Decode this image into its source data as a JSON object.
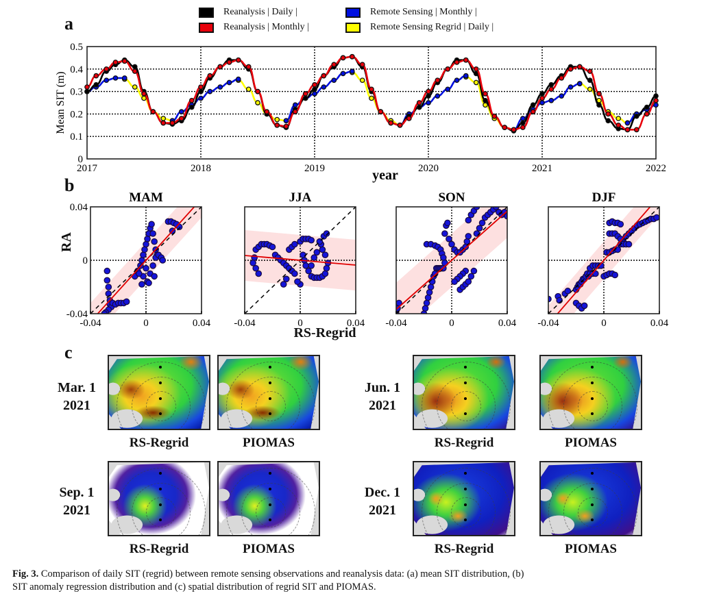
{
  "panels": {
    "a": {
      "letter": "a"
    },
    "b": {
      "letter": "b"
    },
    "c": {
      "letter": "c"
    }
  },
  "legend": [
    {
      "label": "Reanalysis  |  Daily  |",
      "color": "#000000"
    },
    {
      "label": "Reanalysis  |  Monthly  |",
      "color": "#e8000b"
    },
    {
      "label": "Remote Sensing  |  Monthly  |",
      "color": "#0010e0"
    },
    {
      "label": "Remote Sensing Regrid  |  Daily  |",
      "color": "#ffff00"
    }
  ],
  "chart_data": [
    {
      "type": "line",
      "title": "",
      "xlabel": "year",
      "ylabel": "Mean SIT (m)",
      "xlim": [
        2017,
        2022
      ],
      "ylim": [
        0,
        0.5
      ],
      "xticks": [
        "2017",
        "2018",
        "2019",
        "2020",
        "2021",
        "2022"
      ],
      "yticks": [
        "0",
        "0.1",
        "0.2",
        "0.3",
        "0.4",
        "0.5"
      ],
      "grid": true,
      "series": [
        {
          "name": "Reanalysis | Daily",
          "color": "#000000",
          "x": [
            2017.0,
            2017.08,
            2017.17,
            2017.25,
            2017.33,
            2017.42,
            2017.5,
            2017.58,
            2017.67,
            2017.75,
            2017.83,
            2017.92,
            2018.0,
            2018.08,
            2018.17,
            2018.25,
            2018.33,
            2018.42,
            2018.5,
            2018.58,
            2018.67,
            2018.75,
            2018.83,
            2018.92,
            2019.0,
            2019.08,
            2019.17,
            2019.25,
            2019.33,
            2019.42,
            2019.5,
            2019.58,
            2019.67,
            2019.75,
            2019.83,
            2019.92,
            2020.0,
            2020.08,
            2020.17,
            2020.25,
            2020.33,
            2020.42,
            2020.5,
            2020.58,
            2020.67,
            2020.75,
            2020.83,
            2020.92,
            2021.0,
            2021.08,
            2021.17,
            2021.25,
            2021.33,
            2021.42,
            2021.5,
            2021.58,
            2021.67,
            2021.75,
            2021.83,
            2021.92,
            2022.0
          ],
          "y": [
            0.3,
            0.33,
            0.39,
            0.42,
            0.44,
            0.41,
            0.3,
            0.21,
            0.16,
            0.155,
            0.17,
            0.23,
            0.3,
            0.36,
            0.41,
            0.44,
            0.44,
            0.4,
            0.3,
            0.2,
            0.15,
            0.14,
            0.22,
            0.27,
            0.31,
            0.37,
            0.41,
            0.45,
            0.455,
            0.41,
            0.3,
            0.21,
            0.16,
            0.15,
            0.19,
            0.23,
            0.28,
            0.34,
            0.4,
            0.44,
            0.44,
            0.38,
            0.26,
            0.19,
            0.14,
            0.125,
            0.16,
            0.24,
            0.29,
            0.33,
            0.37,
            0.41,
            0.41,
            0.35,
            0.24,
            0.17,
            0.135,
            0.13,
            0.19,
            0.23,
            0.28
          ]
        },
        {
          "name": "Reanalysis | Monthly",
          "color": "#e8000b",
          "x": [
            2017.0,
            2017.08,
            2017.17,
            2017.25,
            2017.33,
            2017.42,
            2017.5,
            2017.58,
            2017.67,
            2017.75,
            2017.83,
            2017.92,
            2018.0,
            2018.08,
            2018.17,
            2018.25,
            2018.33,
            2018.42,
            2018.5,
            2018.58,
            2018.67,
            2018.75,
            2018.83,
            2018.92,
            2019.0,
            2019.08,
            2019.17,
            2019.25,
            2019.33,
            2019.42,
            2019.5,
            2019.58,
            2019.67,
            2019.75,
            2019.83,
            2019.92,
            2020.0,
            2020.08,
            2020.17,
            2020.25,
            2020.33,
            2020.42,
            2020.5,
            2020.58,
            2020.67,
            2020.75,
            2020.83,
            2020.92,
            2021.0,
            2021.08,
            2021.17,
            2021.25,
            2021.33,
            2021.42,
            2021.5,
            2021.58,
            2021.67,
            2021.75,
            2021.83,
            2021.92,
            2022.0
          ],
          "y": [
            0.32,
            0.37,
            0.4,
            0.43,
            0.435,
            0.39,
            0.29,
            0.21,
            0.16,
            0.16,
            0.18,
            0.26,
            0.32,
            0.37,
            0.41,
            0.43,
            0.44,
            0.41,
            0.3,
            0.21,
            0.15,
            0.145,
            0.21,
            0.29,
            0.33,
            0.37,
            0.42,
            0.45,
            0.455,
            0.42,
            0.31,
            0.21,
            0.16,
            0.15,
            0.18,
            0.25,
            0.3,
            0.35,
            0.4,
            0.43,
            0.44,
            0.4,
            0.29,
            0.19,
            0.14,
            0.13,
            0.14,
            0.21,
            0.27,
            0.31,
            0.36,
            0.4,
            0.41,
            0.39,
            0.29,
            0.2,
            0.15,
            0.13,
            0.13,
            0.2,
            0.26
          ]
        },
        {
          "name": "Remote Sensing | Monthly",
          "color": "#0010e0",
          "x": [
            2017.0,
            2017.08,
            2017.17,
            2017.25,
            2017.33,
            2017.75,
            2017.83,
            2017.92,
            2018.0,
            2018.08,
            2018.17,
            2018.25,
            2018.33,
            2018.75,
            2018.83,
            2018.92,
            2019.0,
            2019.08,
            2019.17,
            2019.25,
            2019.33,
            2019.75,
            2019.83,
            2019.92,
            2020.0,
            2020.08,
            2020.17,
            2020.25,
            2020.33,
            2020.75,
            2020.83,
            2020.92,
            2021.0,
            2021.08,
            2021.17,
            2021.25,
            2021.33,
            2021.75,
            2021.83,
            2021.92,
            2022.0
          ],
          "y": [
            0.3,
            0.32,
            0.35,
            0.36,
            0.36,
            0.17,
            0.21,
            0.24,
            0.27,
            0.3,
            0.32,
            0.34,
            0.355,
            0.17,
            0.24,
            0.27,
            0.29,
            0.32,
            0.35,
            0.38,
            0.39,
            0.15,
            0.2,
            0.23,
            0.25,
            0.28,
            0.31,
            0.35,
            0.37,
            0.13,
            0.18,
            0.22,
            0.25,
            0.26,
            0.28,
            0.32,
            0.335,
            0.16,
            0.2,
            0.22,
            0.24
          ]
        },
        {
          "name": "Remote Sensing Regrid | Daily",
          "color": "#ffff00",
          "x": [
            2017.33,
            2017.42,
            2017.5,
            2017.58,
            2017.67,
            2017.75,
            2018.33,
            2018.42,
            2018.5,
            2018.58,
            2018.67,
            2018.75,
            2019.33,
            2019.42,
            2019.5,
            2019.58,
            2019.67,
            2019.75,
            2020.33,
            2020.42,
            2020.5,
            2020.58,
            2020.67,
            2020.75,
            2021.33,
            2021.42,
            2021.5,
            2021.58,
            2021.67,
            2021.75
          ],
          "y": [
            0.355,
            0.32,
            0.27,
            0.21,
            0.18,
            0.17,
            0.35,
            0.31,
            0.25,
            0.2,
            0.175,
            0.17,
            0.385,
            0.35,
            0.27,
            0.21,
            0.17,
            0.15,
            0.365,
            0.34,
            0.24,
            0.18,
            0.14,
            0.13,
            0.335,
            0.31,
            0.26,
            0.21,
            0.18,
            0.16
          ]
        }
      ]
    },
    {
      "type": "scatter",
      "title": "MAM",
      "xlabel": "RS-Regrid",
      "ylabel": "RA",
      "xlim": [
        -0.04,
        0.04
      ],
      "ylim": [
        -0.04,
        0.04
      ],
      "xticks": [
        "-0.04",
        "0",
        "0.04"
      ],
      "yticks": [
        "-0.04",
        "0",
        "0.04"
      ],
      "regression": {
        "slope": 1.15,
        "intercept": 0.0,
        "band": 0.014
      },
      "identity_line": true,
      "points_x": [
        -0.028,
        -0.028,
        -0.027,
        -0.027,
        -0.026,
        -0.026,
        -0.025,
        -0.024,
        -0.022,
        -0.02,
        -0.018,
        -0.016,
        -0.014,
        -0.008,
        -0.006,
        -0.004,
        -0.003,
        -0.002,
        -0.001,
        0.0,
        0.001,
        0.002,
        0.003,
        0.004,
        0.005,
        0.006,
        0.007,
        0.008,
        0.0,
        -0.002,
        0.001,
        0.003,
        0.005,
        0.007,
        0.009,
        0.011,
        0.012,
        0.006,
        0.002,
        -0.003,
        -0.005,
        0.016,
        0.018,
        0.02,
        0.022,
        0.024,
        0.019,
        -0.027,
        -0.029,
        -0.03
      ],
      "points_y": [
        -0.008,
        -0.015,
        -0.02,
        -0.025,
        -0.03,
        -0.033,
        -0.035,
        -0.032,
        -0.033,
        -0.032,
        -0.032,
        -0.032,
        -0.031,
        -0.012,
        -0.008,
        -0.004,
        0.0,
        0.004,
        0.008,
        0.012,
        0.016,
        0.02,
        0.024,
        0.027,
        0.02,
        0.014,
        0.008,
        0.004,
        -0.006,
        -0.012,
        -0.016,
        -0.01,
        -0.004,
        0.002,
        0.004,
        0.002,
        0.0,
        -0.012,
        -0.017,
        -0.018,
        -0.01,
        0.029,
        0.029,
        0.028,
        0.027,
        0.025,
        0.022,
        -0.037,
        -0.039,
        -0.04
      ]
    },
    {
      "type": "scatter",
      "title": "JJA",
      "xlabel": "RS-Regrid",
      "ylabel": "RA",
      "xlim": [
        -0.04,
        0.04
      ],
      "ylim": [
        -0.04,
        0.04
      ],
      "xticks": [
        "-0.04",
        "0",
        "0.04"
      ],
      "yticks": [
        "-0.04",
        "0",
        "0.04"
      ],
      "regression": {
        "slope": -0.09,
        "intercept": 0.0,
        "band": 0.019
      },
      "identity_line": true,
      "points_x": [
        -0.032,
        -0.03,
        -0.028,
        -0.026,
        -0.024,
        -0.022,
        -0.02,
        -0.033,
        -0.034,
        -0.032,
        -0.03,
        -0.018,
        -0.016,
        -0.014,
        -0.012,
        -0.01,
        -0.008,
        -0.006,
        -0.004,
        -0.012,
        -0.01,
        -0.008,
        -0.006,
        -0.004,
        0.0,
        0.002,
        0.004,
        0.006,
        0.008,
        0.002,
        0.003,
        0.004,
        0.006,
        0.008,
        0.01,
        0.012,
        0.014,
        0.016,
        0.018,
        0.019,
        0.02,
        0.018,
        0.016,
        0.015,
        0.017,
        0.019,
        0.008,
        0.01,
        0.012,
        0.0,
        -0.002,
        0.014
      ],
      "points_y": [
        0.008,
        0.01,
        0.012,
        0.012,
        0.012,
        0.011,
        0.01,
        0.002,
        -0.002,
        -0.006,
        -0.01,
        0.004,
        0.002,
        0.0,
        -0.002,
        -0.004,
        -0.006,
        -0.008,
        -0.01,
        -0.018,
        -0.014,
        0.008,
        0.01,
        0.012,
        0.014,
        0.016,
        0.016,
        0.016,
        0.015,
        0.004,
        0.0,
        -0.004,
        -0.008,
        -0.012,
        -0.013,
        -0.013,
        -0.013,
        -0.012,
        -0.01,
        -0.006,
        -0.002,
        0.004,
        0.008,
        0.012,
        0.018,
        0.02,
        -0.004,
        0.002,
        0.006,
        -0.018,
        -0.016,
        0.014
      ]
    },
    {
      "type": "scatter",
      "title": "SON",
      "xlabel": "RS-Regrid",
      "ylabel": "RA",
      "xlim": [
        -0.04,
        0.04
      ],
      "ylim": [
        -0.04,
        0.04
      ],
      "xticks": [
        "-0.04",
        "0",
        "0.04"
      ],
      "yticks": [
        "-0.04",
        "0",
        "0.04"
      ],
      "regression": {
        "slope": 0.92,
        "intercept": 0.0,
        "band": 0.02
      },
      "identity_line": true,
      "points_x": [
        -0.04,
        -0.04,
        -0.039,
        -0.038,
        -0.02,
        -0.019,
        -0.018,
        -0.017,
        -0.016,
        -0.015,
        -0.014,
        -0.013,
        -0.012,
        -0.011,
        -0.01,
        -0.009,
        -0.008,
        -0.007,
        -0.006,
        -0.018,
        -0.015,
        -0.012,
        -0.01,
        -0.008,
        -0.007,
        -0.006,
        -0.005,
        -0.005,
        -0.004,
        -0.003,
        -0.002,
        0.0,
        0.002,
        0.004,
        0.006,
        0.008,
        0.01,
        0.011,
        0.012,
        0.01,
        0.008,
        0.006,
        0.004,
        0.002,
        0.006,
        0.008,
        0.01,
        0.012,
        0.014,
        0.016,
        0.018,
        0.02,
        0.022,
        0.024,
        0.026,
        0.028,
        0.03,
        0.032,
        0.034,
        0.036,
        0.038,
        0.04,
        0.012,
        0.014,
        0.016,
        0.018
      ],
      "points_y": [
        -0.04,
        -0.038,
        -0.036,
        -0.032,
        -0.04,
        -0.036,
        -0.032,
        -0.028,
        -0.024,
        -0.02,
        -0.016,
        -0.012,
        -0.01,
        -0.006,
        -0.006,
        -0.006,
        -0.006,
        -0.006,
        -0.006,
        0.012,
        0.012,
        0.011,
        0.01,
        0.008,
        0.005,
        0.002,
        -0.002,
        0.02,
        0.026,
        0.028,
        0.016,
        0.012,
        0.008,
        0.006,
        0.006,
        0.008,
        0.01,
        0.014,
        0.018,
        -0.008,
        -0.01,
        -0.012,
        -0.014,
        -0.016,
        -0.022,
        -0.02,
        -0.018,
        -0.016,
        -0.012,
        -0.008,
        0.02,
        0.024,
        0.028,
        0.032,
        0.034,
        0.036,
        0.038,
        0.04,
        0.036,
        0.034,
        0.036,
        0.033,
        0.03,
        0.034,
        0.037,
        0.04
      ]
    },
    {
      "type": "scatter",
      "title": "DJF",
      "xlabel": "RS-Regrid",
      "ylabel": "RA",
      "xlim": [
        -0.04,
        0.04
      ],
      "ylim": [
        -0.04,
        0.04
      ],
      "xticks": [
        "-0.04",
        "0",
        "0.04"
      ],
      "yticks": [
        "-0.04",
        "0",
        "0.04"
      ],
      "regression": {
        "slope": 1.2,
        "intercept": 0.0,
        "band": 0.014
      },
      "identity_line": true,
      "points_x": [
        -0.04,
        -0.033,
        -0.032,
        -0.028,
        -0.026,
        -0.02,
        -0.019,
        -0.018,
        -0.017,
        -0.016,
        -0.015,
        -0.014,
        -0.013,
        -0.012,
        -0.011,
        -0.01,
        -0.008,
        -0.006,
        -0.01,
        -0.008,
        -0.006,
        -0.004,
        -0.002,
        -0.02,
        -0.018,
        -0.016,
        -0.014,
        0.0,
        0.002,
        0.004,
        0.006,
        0.008,
        0.002,
        0.004,
        0.006,
        0.008,
        0.01,
        0.012,
        0.014,
        0.016,
        0.018,
        0.02,
        0.022,
        0.024,
        0.026,
        0.028,
        0.03,
        0.032,
        0.034,
        0.036,
        0.038,
        0.004,
        0.006,
        0.008,
        0.01,
        0.012,
        0.014,
        0.016,
        0.018,
        0.004,
        0.006,
        0.008,
        0.01,
        0.012
      ],
      "points_y": [
        -0.029,
        -0.027,
        -0.03,
        -0.025,
        -0.023,
        -0.022,
        -0.02,
        -0.018,
        -0.018,
        -0.016,
        -0.014,
        -0.014,
        -0.012,
        -0.01,
        -0.012,
        -0.01,
        -0.01,
        -0.01,
        -0.006,
        -0.004,
        -0.004,
        -0.004,
        -0.004,
        -0.032,
        -0.034,
        -0.036,
        -0.034,
        -0.012,
        -0.011,
        -0.01,
        -0.01,
        -0.011,
        0.006,
        0.006,
        0.007,
        0.008,
        0.008,
        0.012,
        0.014,
        0.018,
        0.02,
        0.022,
        0.024,
        0.026,
        0.027,
        0.028,
        0.029,
        0.03,
        0.031,
        0.031,
        0.032,
        0.02,
        0.02,
        0.02,
        0.018,
        0.016,
        0.012,
        0.012,
        0.012,
        0.028,
        0.029,
        0.028,
        0.028,
        0.027
      ]
    }
  ],
  "scatter_axes": {
    "ylabel": "RA",
    "xlabel": "RS-Regrid"
  },
  "maps": {
    "rows": [
      {
        "dates": [
          "Mar. 1",
          "2021"
        ],
        "dates2": [
          "Jun. 1",
          "2021"
        ]
      },
      {
        "dates": [
          "Sep. 1",
          "2021"
        ],
        "dates2": [
          "Dec. 1",
          "2021"
        ]
      }
    ],
    "captions": {
      "left": "RS-Regrid",
      "right": "PIOMAS"
    },
    "fields": [
      {
        "id": "mar-rs",
        "season": "mar"
      },
      {
        "id": "mar-piomas",
        "season": "mar"
      },
      {
        "id": "jun-rs",
        "season": "jun"
      },
      {
        "id": "jun-piomas",
        "season": "jun"
      },
      {
        "id": "sep-rs",
        "season": "sep"
      },
      {
        "id": "sep-piomas",
        "season": "sep"
      },
      {
        "id": "dec-rs",
        "season": "dec"
      },
      {
        "id": "dec-piomas",
        "season": "dec"
      }
    ]
  },
  "caption": {
    "prefix": "Fig. 3.",
    "line1": " Comparison of daily SIT (regrid) between remote sensing observations and reanalysis data: (a) mean SIT distribution, (b)",
    "line2": "SIT anomaly regression distribution and (c) spatial distribution of regrid SIT and PIOMAS."
  }
}
